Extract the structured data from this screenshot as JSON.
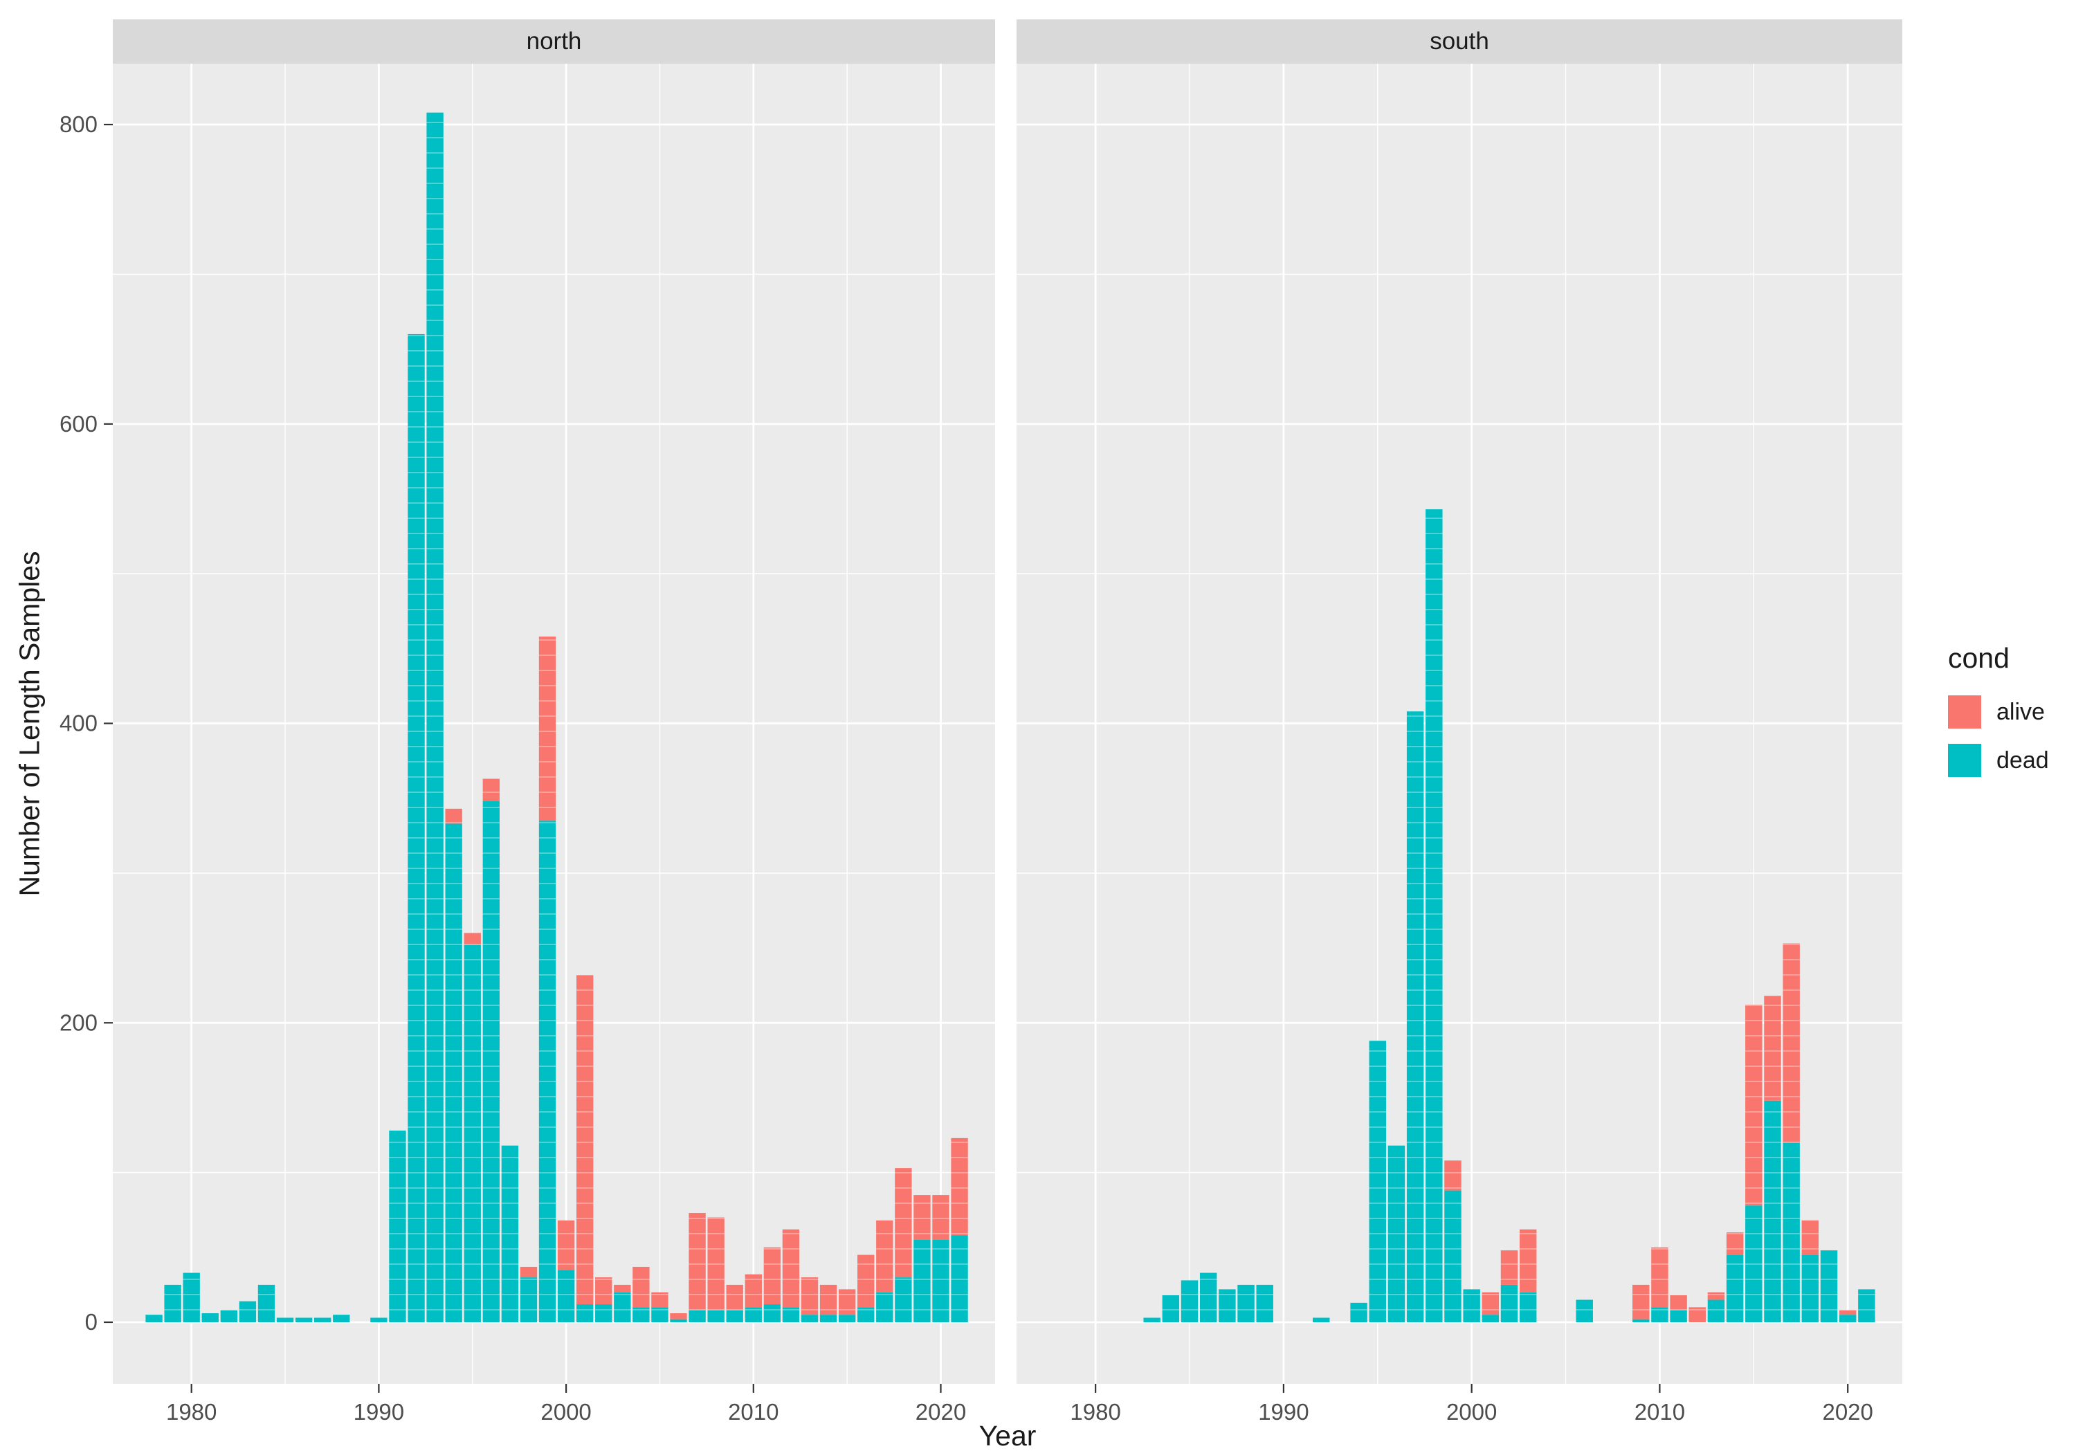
{
  "style": {
    "panel_bg": "#EBEBEB",
    "strip_bg": "#D9D9D9",
    "grid_major": "#FFFFFF",
    "grid_minor": "#FFFFFF",
    "axis_text": "#4D4D4D",
    "tick_mark": "#333333",
    "title_text": "#1A1A1A"
  },
  "chart_data": {
    "type": "bar",
    "stacked": true,
    "title": "",
    "xlabel": "Year",
    "ylabel": "Number of Length Samples",
    "x_ticks": [
      1980,
      1990,
      2000,
      2010,
      2020
    ],
    "x_minor": [
      1985,
      1995,
      2005,
      2015
    ],
    "y_ticks": [
      0,
      200,
      400,
      600,
      800
    ],
    "y_minor": [
      100,
      300,
      500,
      700
    ],
    "xlim": [
      1975.8,
      2022.9
    ],
    "ylim": [
      0,
      840
    ],
    "grid": true,
    "legend_position": "right",
    "colors": {
      "alive": "#F8766D",
      "dead": "#00BFC4"
    },
    "legend": {
      "title": "cond",
      "entries": [
        {
          "label": "alive",
          "color": "#F8766D"
        },
        {
          "label": "dead",
          "color": "#00BFC4"
        }
      ]
    },
    "bars_format": [
      "year",
      "dead",
      "alive"
    ],
    "facets": [
      {
        "label": "north",
        "bars": [
          [
            1978,
            5,
            0
          ],
          [
            1979,
            25,
            0
          ],
          [
            1980,
            33,
            0
          ],
          [
            1981,
            6,
            0
          ],
          [
            1982,
            8,
            0
          ],
          [
            1983,
            14,
            0
          ],
          [
            1984,
            25,
            0
          ],
          [
            1985,
            3,
            0
          ],
          [
            1986,
            3,
            0
          ],
          [
            1987,
            3,
            0
          ],
          [
            1988,
            5,
            0
          ],
          [
            1990,
            3,
            0
          ],
          [
            1991,
            128,
            0
          ],
          [
            1992,
            660,
            0
          ],
          [
            1993,
            808,
            0
          ],
          [
            1994,
            333,
            10
          ],
          [
            1995,
            252,
            8
          ],
          [
            1996,
            348,
            15
          ],
          [
            1997,
            118,
            0
          ],
          [
            1998,
            30,
            7
          ],
          [
            1999,
            335,
            123
          ],
          [
            2000,
            35,
            33
          ],
          [
            2001,
            12,
            220
          ],
          [
            2002,
            12,
            18
          ],
          [
            2003,
            20,
            5
          ],
          [
            2004,
            10,
            27
          ],
          [
            2005,
            10,
            10
          ],
          [
            2006,
            2,
            4
          ],
          [
            2007,
            8,
            65
          ],
          [
            2008,
            8,
            62
          ],
          [
            2009,
            8,
            17
          ],
          [
            2010,
            10,
            22
          ],
          [
            2011,
            12,
            38
          ],
          [
            2012,
            10,
            52
          ],
          [
            2013,
            5,
            25
          ],
          [
            2014,
            5,
            20
          ],
          [
            2015,
            5,
            17
          ],
          [
            2016,
            10,
            35
          ],
          [
            2017,
            20,
            48
          ],
          [
            2018,
            30,
            73
          ],
          [
            2019,
            55,
            30
          ],
          [
            2020,
            55,
            30
          ],
          [
            2021,
            58,
            65
          ]
        ]
      },
      {
        "label": "south",
        "bars": [
          [
            1983,
            3,
            0
          ],
          [
            1984,
            18,
            0
          ],
          [
            1985,
            28,
            0
          ],
          [
            1986,
            33,
            0
          ],
          [
            1987,
            22,
            0
          ],
          [
            1988,
            25,
            0
          ],
          [
            1989,
            25,
            0
          ],
          [
            1992,
            3,
            0
          ],
          [
            1994,
            13,
            0
          ],
          [
            1995,
            188,
            0
          ],
          [
            1996,
            118,
            0
          ],
          [
            1997,
            408,
            0
          ],
          [
            1998,
            543,
            0
          ],
          [
            1999,
            88,
            20
          ],
          [
            2000,
            22,
            0
          ],
          [
            2001,
            5,
            15
          ],
          [
            2002,
            25,
            23
          ],
          [
            2003,
            20,
            42
          ],
          [
            2006,
            15,
            0
          ],
          [
            2009,
            2,
            23
          ],
          [
            2010,
            10,
            40
          ],
          [
            2011,
            8,
            10
          ],
          [
            2012,
            0,
            10
          ],
          [
            2013,
            15,
            5
          ],
          [
            2014,
            45,
            15
          ],
          [
            2015,
            78,
            134
          ],
          [
            2016,
            148,
            70
          ],
          [
            2017,
            120,
            133
          ],
          [
            2018,
            45,
            23
          ],
          [
            2019,
            48,
            0
          ],
          [
            2020,
            5,
            3
          ],
          [
            2021,
            22,
            0
          ]
        ]
      }
    ]
  }
}
